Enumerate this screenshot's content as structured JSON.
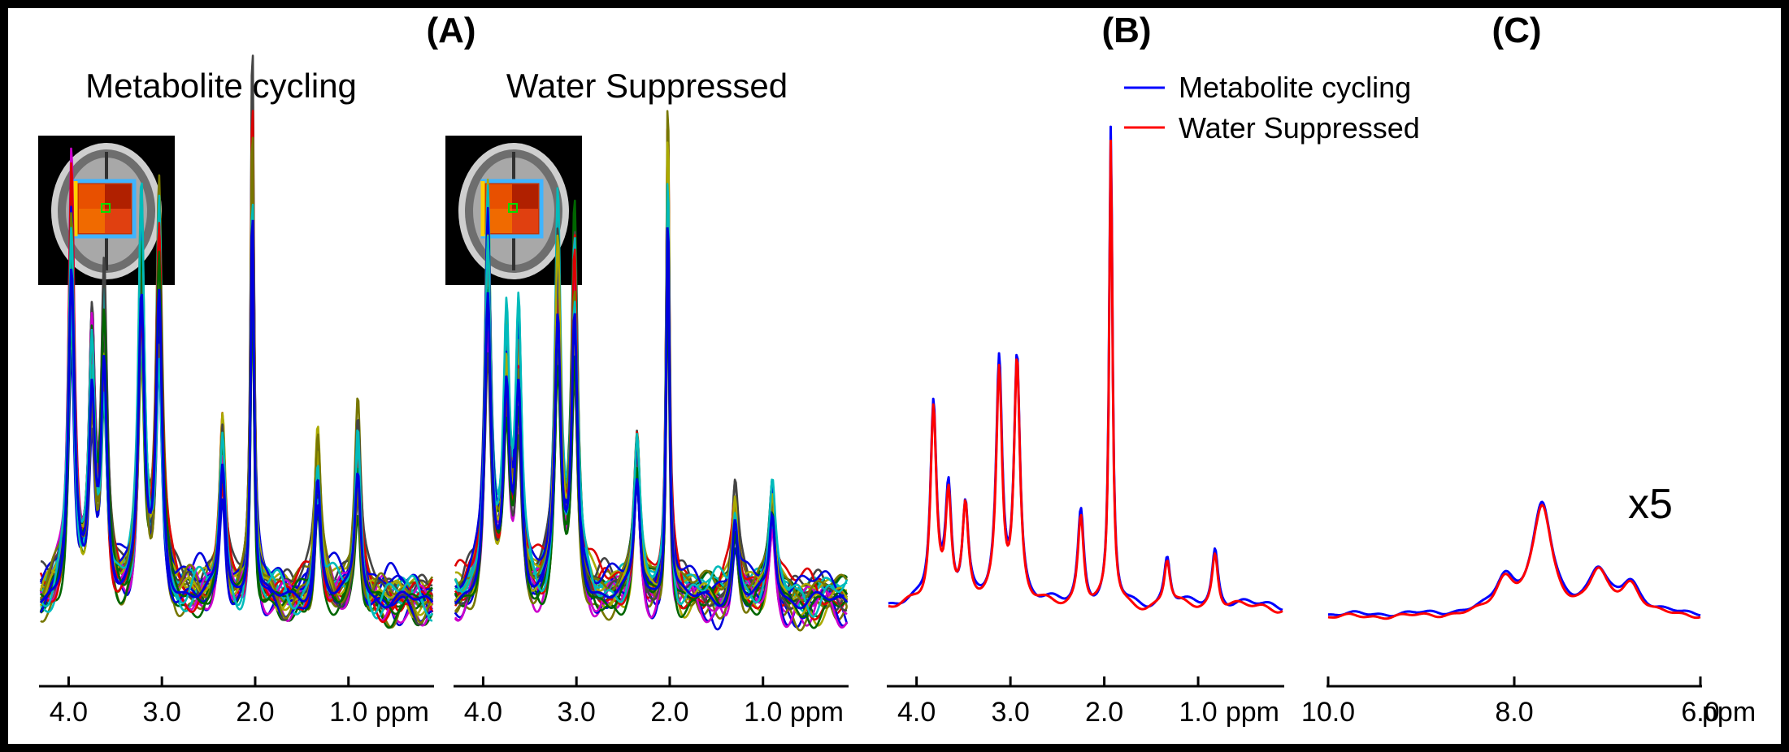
{
  "chart_data": [
    {
      "type": "line",
      "panel_label": "(A)",
      "title": "Metabolite cycling",
      "xlabel": "ppm",
      "xlim": [
        4.3,
        0.1
      ],
      "xticks": [
        {
          "value": 4.0,
          "label": "4.0"
        },
        {
          "value": 3.0,
          "label": "3.0"
        },
        {
          "value": 2.0,
          "label": "2.0"
        },
        {
          "value": 1.0,
          "label": "1.0"
        }
      ],
      "inset": "brain-mri-with-voxel-grid",
      "series_colors": [
        "#0000dd",
        "#777700",
        "#006600",
        "#00bbbb",
        "#cc00cc",
        "#444444",
        "#dd0000",
        "#aaaa00"
      ],
      "peaks": [
        {
          "ppm": 3.97,
          "height": 0.78
        },
        {
          "ppm": 3.75,
          "height": 0.48
        },
        {
          "ppm": 3.62,
          "height": 0.55
        },
        {
          "ppm": 3.22,
          "height": 0.72
        },
        {
          "ppm": 3.03,
          "height": 0.72
        },
        {
          "ppm": 2.35,
          "height": 0.33
        },
        {
          "ppm": 2.03,
          "height": 1.0
        },
        {
          "ppm": 1.33,
          "height": 0.3
        },
        {
          "ppm": 0.9,
          "height": 0.32
        }
      ]
    },
    {
      "type": "line",
      "title": "Water Suppressed",
      "xlabel": "ppm",
      "xlim": [
        4.3,
        0.1
      ],
      "xticks": [
        {
          "value": 4.0,
          "label": "4.0"
        },
        {
          "value": 3.0,
          "label": "3.0"
        },
        {
          "value": 2.0,
          "label": "2.0"
        },
        {
          "value": 1.0,
          "label": "1.0"
        }
      ],
      "inset": "brain-mri-with-voxel-grid",
      "series_colors": [
        "#0000dd",
        "#aaaa00",
        "#006600",
        "#00bbbb",
        "#cc00cc",
        "#444444",
        "#dd0000",
        "#777700"
      ],
      "peaks": [
        {
          "ppm": 3.95,
          "height": 0.72
        },
        {
          "ppm": 3.75,
          "height": 0.5
        },
        {
          "ppm": 3.62,
          "height": 0.5
        },
        {
          "ppm": 3.2,
          "height": 0.68
        },
        {
          "ppm": 3.02,
          "height": 0.68
        },
        {
          "ppm": 2.35,
          "height": 0.3
        },
        {
          "ppm": 2.02,
          "height": 1.0
        },
        {
          "ppm": 1.3,
          "height": 0.2
        },
        {
          "ppm": 0.9,
          "height": 0.22
        }
      ]
    },
    {
      "type": "line",
      "panel_label": "(B)",
      "xlabel": "ppm",
      "xlim": [
        4.3,
        0.1
      ],
      "xticks": [
        {
          "value": 4.0,
          "label": "4.0"
        },
        {
          "value": 3.0,
          "label": "3.0"
        },
        {
          "value": 2.0,
          "label": "2.0"
        },
        {
          "value": 1.0,
          "label": "1.0"
        }
      ],
      "legend": [
        {
          "name": "Metabolite cycling",
          "color": "#0000ff"
        },
        {
          "name": "Water Suppressed",
          "color": "#ff0000"
        }
      ],
      "legend_position": "top",
      "series": [
        {
          "name": "Metabolite cycling",
          "color": "#0000ff",
          "scale": 1.0
        },
        {
          "name": "Water Suppressed",
          "color": "#ff0000",
          "scale": 0.98
        }
      ],
      "peaks": [
        {
          "ppm": 3.82,
          "height": 0.42
        },
        {
          "ppm": 3.66,
          "height": 0.24
        },
        {
          "ppm": 3.48,
          "height": 0.2
        },
        {
          "ppm": 3.12,
          "height": 0.5
        },
        {
          "ppm": 2.93,
          "height": 0.52
        },
        {
          "ppm": 2.25,
          "height": 0.2
        },
        {
          "ppm": 1.93,
          "height": 1.0
        },
        {
          "ppm": 1.33,
          "height": 0.1
        },
        {
          "ppm": 0.82,
          "height": 0.12
        }
      ]
    },
    {
      "type": "line",
      "panel_label": "(C)",
      "xlabel": "ppm",
      "xlim": [
        10.0,
        6.0
      ],
      "xticks": [
        {
          "value": 10.0,
          "label": "10.0"
        },
        {
          "value": 8.0,
          "label": "8.0"
        },
        {
          "value": 6.0,
          "label": "6.0"
        }
      ],
      "annotation": "x5",
      "series": [
        {
          "name": "Metabolite cycling",
          "color": "#0000ff",
          "scale": 1.0
        },
        {
          "name": "Water Suppressed",
          "color": "#ff0000",
          "scale": 1.0
        }
      ],
      "peaks": [
        {
          "ppm": 7.7,
          "height": 0.32
        },
        {
          "ppm": 8.1,
          "height": 0.1
        },
        {
          "ppm": 7.1,
          "height": 0.12
        },
        {
          "ppm": 6.75,
          "height": 0.09
        }
      ]
    }
  ]
}
